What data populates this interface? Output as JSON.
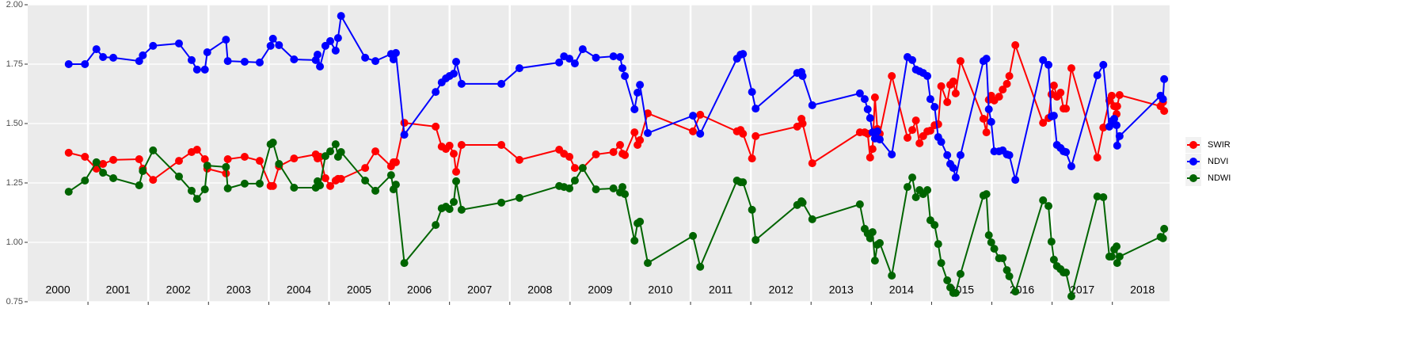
{
  "chart_data": {
    "type": "line",
    "x": [
      2000.68,
      2000.95,
      2001.14,
      2001.25,
      2001.42,
      2001.85,
      2001.91,
      2002.08,
      2002.51,
      2002.72,
      2002.81,
      2002.94,
      2002.98,
      2003.29,
      2003.32,
      2003.6,
      2003.85,
      2004.03,
      2004.07,
      2004.17,
      2004.42,
      2004.78,
      2004.81,
      2004.85,
      2004.94,
      2005.02,
      2005.11,
      2005.15,
      2005.2,
      2005.6,
      2005.77,
      2006.03,
      2006.07,
      2006.11,
      2006.25,
      2006.77,
      2006.87,
      2006.94,
      2007.0,
      2007.07,
      2007.11,
      2007.2,
      2007.86,
      2008.16,
      2008.82,
      2008.9,
      2008.99,
      2009.08,
      2009.21,
      2009.43,
      2009.72,
      2009.83,
      2009.87,
      2009.91,
      2010.07,
      2010.12,
      2010.16,
      2010.29,
      2011.04,
      2011.16,
      2011.77,
      2011.83,
      2011.87,
      2012.02,
      2012.08,
      2012.77,
      2012.84,
      2012.86,
      2013.02,
      2013.81,
      2013.89,
      2013.94,
      2013.98,
      2014.02,
      2014.06,
      2014.1,
      2014.14,
      2014.34,
      2014.6,
      2014.68,
      2014.74,
      2014.8,
      2014.86,
      2014.93,
      2014.98,
      2015.05,
      2015.11,
      2015.16,
      2015.26,
      2015.31,
      2015.36,
      2015.4,
      2015.48,
      2015.86,
      2015.91,
      2015.95,
      2015.99,
      2016.04,
      2016.12,
      2016.18,
      2016.25,
      2016.29,
      2016.39,
      2016.85,
      2016.94,
      2016.99,
      2017.03,
      2017.08,
      2017.14,
      2017.19,
      2017.23,
      2017.32,
      2017.75,
      2017.85,
      2017.95,
      2017.99,
      2018.03,
      2018.07,
      2018.08,
      2018.12,
      2018.8,
      2018.84,
      2018.86
    ],
    "series": [
      {
        "name": "SWIR",
        "color": "#ff0000",
        "values": [
          1.377,
          1.36,
          1.31,
          1.33,
          1.347,
          1.35,
          1.31,
          1.263,
          1.343,
          1.38,
          1.39,
          1.35,
          1.31,
          1.29,
          1.35,
          1.36,
          1.343,
          1.237,
          1.237,
          1.32,
          1.353,
          1.37,
          1.353,
          1.36,
          1.27,
          1.237,
          1.26,
          1.267,
          1.267,
          1.313,
          1.383,
          1.32,
          1.337,
          1.337,
          1.503,
          1.487,
          1.403,
          1.393,
          1.407,
          1.373,
          1.297,
          1.41,
          1.41,
          1.347,
          1.39,
          1.373,
          1.36,
          1.313,
          1.313,
          1.37,
          1.38,
          1.41,
          1.373,
          1.367,
          1.463,
          1.41,
          1.43,
          1.543,
          1.467,
          1.537,
          1.467,
          1.473,
          1.457,
          1.353,
          1.447,
          1.487,
          1.52,
          1.5,
          1.333,
          1.463,
          1.463,
          1.457,
          1.357,
          1.393,
          1.61,
          1.477,
          1.457,
          1.7,
          1.44,
          1.473,
          1.513,
          1.417,
          1.447,
          1.467,
          1.47,
          1.493,
          1.497,
          1.657,
          1.59,
          1.663,
          1.677,
          1.627,
          1.763,
          1.52,
          1.463,
          1.6,
          1.617,
          1.597,
          1.613,
          1.643,
          1.667,
          1.7,
          1.83,
          1.503,
          1.523,
          1.623,
          1.66,
          1.613,
          1.63,
          1.563,
          1.563,
          1.733,
          1.357,
          1.483,
          1.597,
          1.617,
          1.573,
          1.54,
          1.573,
          1.62,
          1.573,
          1.59,
          1.553
        ]
      },
      {
        "name": "NDVI",
        "color": "#0000ff",
        "values": [
          1.75,
          1.75,
          1.813,
          1.78,
          1.777,
          1.763,
          1.787,
          1.827,
          1.837,
          1.767,
          1.727,
          1.727,
          1.8,
          1.853,
          1.763,
          1.76,
          1.757,
          1.827,
          1.857,
          1.83,
          1.77,
          1.767,
          1.79,
          1.74,
          1.827,
          1.847,
          1.807,
          1.86,
          1.953,
          1.777,
          1.763,
          1.793,
          1.77,
          1.797,
          1.453,
          1.633,
          1.673,
          1.69,
          1.7,
          1.71,
          1.76,
          1.667,
          1.667,
          1.733,
          1.757,
          1.783,
          1.773,
          1.753,
          1.813,
          1.777,
          1.783,
          1.78,
          1.733,
          1.7,
          1.56,
          1.63,
          1.663,
          1.46,
          1.533,
          1.457,
          1.773,
          1.79,
          1.793,
          1.633,
          1.563,
          1.713,
          1.717,
          1.7,
          1.577,
          1.627,
          1.603,
          1.56,
          1.523,
          1.463,
          1.437,
          1.467,
          1.433,
          1.37,
          1.78,
          1.767,
          1.727,
          1.72,
          1.713,
          1.7,
          1.603,
          1.57,
          1.443,
          1.423,
          1.367,
          1.33,
          1.313,
          1.273,
          1.367,
          1.763,
          1.773,
          1.56,
          1.507,
          1.383,
          1.383,
          1.387,
          1.37,
          1.367,
          1.263,
          1.767,
          1.747,
          1.53,
          1.533,
          1.41,
          1.397,
          1.383,
          1.38,
          1.32,
          1.703,
          1.747,
          1.487,
          1.51,
          1.52,
          1.493,
          1.407,
          1.447,
          1.617,
          1.603,
          1.687
        ]
      },
      {
        "name": "NDWI",
        "color": "#006400",
        "values": [
          1.213,
          1.26,
          1.337,
          1.293,
          1.27,
          1.24,
          1.3,
          1.387,
          1.277,
          1.217,
          1.183,
          1.223,
          1.323,
          1.317,
          1.227,
          1.247,
          1.247,
          1.413,
          1.42,
          1.33,
          1.23,
          1.23,
          1.257,
          1.24,
          1.363,
          1.383,
          1.413,
          1.36,
          1.38,
          1.26,
          1.217,
          1.283,
          1.223,
          1.243,
          0.913,
          1.073,
          1.143,
          1.15,
          1.14,
          1.17,
          1.257,
          1.137,
          1.167,
          1.187,
          1.237,
          1.233,
          1.227,
          1.26,
          1.313,
          1.223,
          1.227,
          1.21,
          1.233,
          1.203,
          1.007,
          1.08,
          1.087,
          0.913,
          1.027,
          0.897,
          1.26,
          1.253,
          1.253,
          1.137,
          1.01,
          1.157,
          1.173,
          1.167,
          1.097,
          1.16,
          1.057,
          1.037,
          1.017,
          1.043,
          0.923,
          0.99,
          0.997,
          0.86,
          1.233,
          1.273,
          1.19,
          1.22,
          1.203,
          1.22,
          1.093,
          1.073,
          0.993,
          0.913,
          0.84,
          0.81,
          0.787,
          0.787,
          0.867,
          1.197,
          1.203,
          1.03,
          1.0,
          0.973,
          0.933,
          0.933,
          0.883,
          0.857,
          0.793,
          1.177,
          1.153,
          1.003,
          0.927,
          0.9,
          0.887,
          0.873,
          0.873,
          0.773,
          1.193,
          1.19,
          0.94,
          0.94,
          0.97,
          0.983,
          0.913,
          0.94,
          1.023,
          1.017,
          1.057
        ]
      }
    ],
    "xlim": [
      2000,
      2018.95
    ],
    "xticks": [
      2001,
      2002,
      2003,
      2004,
      2005,
      2006,
      2007,
      2008,
      2009,
      2010,
      2011,
      2012,
      2013,
      2014,
      2015,
      2016,
      2017,
      2018
    ],
    "year_labels": [
      2000,
      2001,
      2002,
      2003,
      2004,
      2005,
      2006,
      2007,
      2008,
      2009,
      2010,
      2011,
      2012,
      2013,
      2014,
      2015,
      2016,
      2017,
      2018
    ],
    "ylim": [
      0.75,
      2
    ],
    "yticks": [
      0.75,
      {
        "value": 1,
        "label": "1.00"
      },
      1.25,
      {
        "value": 1.5,
        "label": "1.50"
      },
      1.75,
      {
        "value": 2,
        "label": "2.00"
      }
    ],
    "grid": true,
    "legend": "right"
  }
}
